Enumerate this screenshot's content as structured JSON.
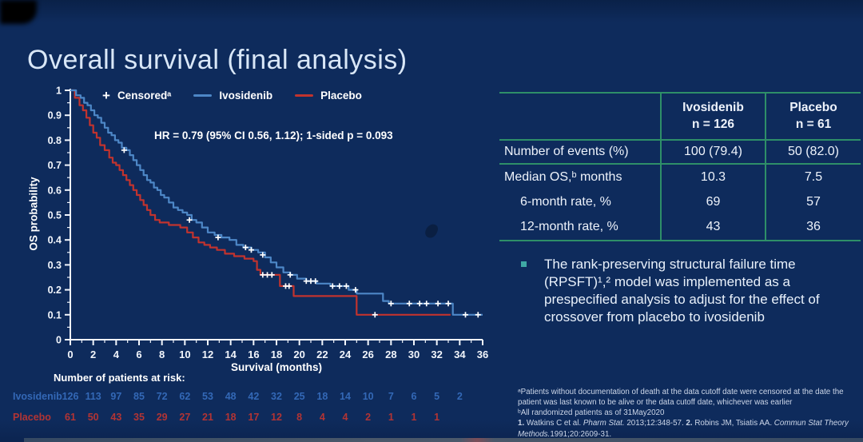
{
  "title": "Overall survival (final analysis)",
  "legend": {
    "censored_marker": "+",
    "censored": "Censoredᵃ",
    "ivosidenib": "Ivosidenib",
    "placebo": "Placebo"
  },
  "hr_text": "HR = 0.79 (95% CI 0.56, 1.12); 1-sided p = 0.093",
  "chart_data": {
    "type": "line",
    "subtype": "kaplan-meier-step",
    "xlabel": "Survival (months)",
    "ylabel": "OS probability",
    "xlim": [
      0,
      36
    ],
    "ylim": [
      0,
      1
    ],
    "x_ticks": [
      0,
      2,
      4,
      6,
      8,
      10,
      12,
      14,
      16,
      18,
      20,
      22,
      24,
      26,
      28,
      30,
      32,
      34,
      36
    ],
    "y_ticks": [
      1,
      0.9,
      0.8,
      0.7,
      0.6,
      0.5,
      0.4,
      0.3,
      0.2,
      0.1,
      0
    ],
    "series": [
      {
        "name": "Placebo",
        "color": "#c1332e",
        "steps": [
          [
            0,
            1.0
          ],
          [
            0.4,
            0.97
          ],
          [
            0.8,
            0.94
          ],
          [
            1.1,
            0.92
          ],
          [
            1.4,
            0.89
          ],
          [
            1.7,
            0.86
          ],
          [
            2.0,
            0.83
          ],
          [
            2.3,
            0.81
          ],
          [
            2.6,
            0.78
          ],
          [
            3.0,
            0.76
          ],
          [
            3.4,
            0.73
          ],
          [
            3.7,
            0.71
          ],
          [
            4.0,
            0.7
          ],
          [
            4.3,
            0.68
          ],
          [
            4.6,
            0.66
          ],
          [
            4.9,
            0.64
          ],
          [
            5.2,
            0.62
          ],
          [
            5.5,
            0.6
          ],
          [
            5.8,
            0.58
          ],
          [
            6.1,
            0.56
          ],
          [
            6.4,
            0.54
          ],
          [
            6.7,
            0.52
          ],
          [
            7.0,
            0.5
          ],
          [
            7.4,
            0.48
          ],
          [
            7.8,
            0.47
          ],
          [
            8.6,
            0.46
          ],
          [
            9.6,
            0.45
          ],
          [
            10.2,
            0.43
          ],
          [
            10.7,
            0.41
          ],
          [
            11.2,
            0.39
          ],
          [
            11.7,
            0.38
          ],
          [
            12.2,
            0.37
          ],
          [
            12.8,
            0.36
          ],
          [
            13.5,
            0.345
          ],
          [
            14.3,
            0.335
          ],
          [
            15.2,
            0.325
          ],
          [
            16.0,
            0.315
          ],
          [
            16.3,
            0.28
          ],
          [
            16.6,
            0.26
          ],
          [
            18.3,
            0.215
          ],
          [
            19.5,
            0.175
          ],
          [
            25.0,
            0.1
          ],
          [
            33.2,
            0.1
          ]
        ],
        "censored": [
          [
            16.8,
            0.26
          ],
          [
            17.2,
            0.26
          ],
          [
            17.6,
            0.26
          ],
          [
            18.8,
            0.215
          ],
          [
            19.1,
            0.215
          ],
          [
            26.6,
            0.1
          ]
        ]
      },
      {
        "name": "Ivosidenib",
        "color": "#4d87c7",
        "steps": [
          [
            0,
            1.0
          ],
          [
            0.5,
            0.98
          ],
          [
            0.9,
            0.97
          ],
          [
            1.2,
            0.95
          ],
          [
            1.5,
            0.94
          ],
          [
            1.8,
            0.92
          ],
          [
            2.1,
            0.9
          ],
          [
            2.4,
            0.89
          ],
          [
            2.7,
            0.87
          ],
          [
            3.0,
            0.85
          ],
          [
            3.3,
            0.83
          ],
          [
            3.6,
            0.82
          ],
          [
            3.9,
            0.8
          ],
          [
            4.2,
            0.79
          ],
          [
            4.5,
            0.77
          ],
          [
            4.9,
            0.76
          ],
          [
            5.2,
            0.74
          ],
          [
            5.5,
            0.72
          ],
          [
            5.8,
            0.7
          ],
          [
            6.1,
            0.68
          ],
          [
            6.4,
            0.66
          ],
          [
            6.7,
            0.64
          ],
          [
            7.0,
            0.63
          ],
          [
            7.3,
            0.61
          ],
          [
            7.6,
            0.6
          ],
          [
            7.9,
            0.58
          ],
          [
            8.2,
            0.57
          ],
          [
            8.6,
            0.55
          ],
          [
            9.0,
            0.53
          ],
          [
            9.4,
            0.52
          ],
          [
            9.8,
            0.51
          ],
          [
            10.2,
            0.5
          ],
          [
            10.6,
            0.48
          ],
          [
            11.0,
            0.47
          ],
          [
            11.5,
            0.45
          ],
          [
            12.0,
            0.43
          ],
          [
            12.6,
            0.42
          ],
          [
            13.2,
            0.41
          ],
          [
            13.9,
            0.4
          ],
          [
            14.5,
            0.38
          ],
          [
            15.1,
            0.37
          ],
          [
            15.8,
            0.36
          ],
          [
            16.4,
            0.35
          ],
          [
            17.0,
            0.33
          ],
          [
            17.5,
            0.31
          ],
          [
            18.0,
            0.29
          ],
          [
            18.6,
            0.27
          ],
          [
            19.2,
            0.26
          ],
          [
            19.8,
            0.245
          ],
          [
            20.6,
            0.235
          ],
          [
            21.5,
            0.225
          ],
          [
            22.7,
            0.215
          ],
          [
            24.3,
            0.2
          ],
          [
            25.0,
            0.185
          ],
          [
            27.3,
            0.155
          ],
          [
            27.8,
            0.145
          ],
          [
            33.4,
            0.1
          ],
          [
            36.0,
            0.1
          ]
        ],
        "censored": [
          [
            4.7,
            0.76
          ],
          [
            10.4,
            0.48
          ],
          [
            12.9,
            0.41
          ],
          [
            15.3,
            0.37
          ],
          [
            15.8,
            0.36
          ],
          [
            16.8,
            0.34
          ],
          [
            19.2,
            0.26
          ],
          [
            20.6,
            0.235
          ],
          [
            21.0,
            0.235
          ],
          [
            21.4,
            0.235
          ],
          [
            22.9,
            0.215
          ],
          [
            23.5,
            0.215
          ],
          [
            24.1,
            0.215
          ],
          [
            24.9,
            0.2
          ],
          [
            28.0,
            0.145
          ],
          [
            29.6,
            0.145
          ],
          [
            30.5,
            0.145
          ],
          [
            31.1,
            0.145
          ],
          [
            32.1,
            0.145
          ],
          [
            33.0,
            0.145
          ],
          [
            34.5,
            0.1
          ],
          [
            35.6,
            0.1
          ]
        ]
      }
    ]
  },
  "at_risk": {
    "title": "Number of patients at risk:",
    "rows": [
      {
        "label": "Ivosidenib",
        "color": "#3368b6",
        "start_month": 0,
        "interval": 2,
        "counts": [
          126,
          113,
          97,
          85,
          72,
          62,
          53,
          48,
          42,
          32,
          25,
          18,
          14,
          10,
          7,
          6,
          5,
          2
        ]
      },
      {
        "label": "Placebo",
        "color": "#b23434",
        "start_month": 0,
        "interval": 2,
        "counts": [
          61,
          50,
          43,
          35,
          29,
          27,
          21,
          18,
          17,
          12,
          8,
          4,
          4,
          2,
          1,
          1,
          1
        ]
      }
    ]
  },
  "table": {
    "header": {
      "ivo_line1": "Ivosidenib",
      "ivo_line2": "n = 126",
      "pbo_line1": "Placebo",
      "pbo_line2": "n = 61"
    },
    "rows": [
      {
        "label": "Number of events (%)",
        "ivo": "100 (79.4)",
        "pbo": "50 (82.0)"
      },
      {
        "label": "Median OS,ᵇ months",
        "ivo": "10.3",
        "pbo": "7.5"
      },
      {
        "label": "6-month rate, %",
        "ivo": "69",
        "pbo": "57"
      },
      {
        "label": "12-month rate, %",
        "ivo": "43",
        "pbo": "36"
      }
    ]
  },
  "bullet": {
    "text": "The rank-preserving structural failure time (RPSFT)¹,² model was implemented as a prespecified analysis to adjust for the effect of crossover from placebo to ivosidenib"
  },
  "footnotes": {
    "a": "ᵃPatients without documentation of death at the data cutoff date were censored at the date the patient was last known to be alive or the data cutoff date, whichever was earlier",
    "b": "ᵇAll randomized patients as of 31May2020",
    "refs": [
      {
        "t": "1. ",
        "b": true
      },
      {
        "t": "Watkins C et al. "
      },
      {
        "t": "Pharm Stat.",
        "i": true
      },
      {
        "t": " 2013;12:348-57. "
      },
      {
        "t": "2. ",
        "b": true
      },
      {
        "t": "Robins JM, Tsiatis AA. "
      },
      {
        "t": "Commun Stat Theory Methods.",
        "i": true
      },
      {
        "t": "1991;20:2609-31."
      }
    ]
  },
  "colors": {
    "table_line": "#2e8f68",
    "bullet_square": "#3fa9a5",
    "axis": "#f2f6fc",
    "censor_mark": "#ffffff"
  }
}
